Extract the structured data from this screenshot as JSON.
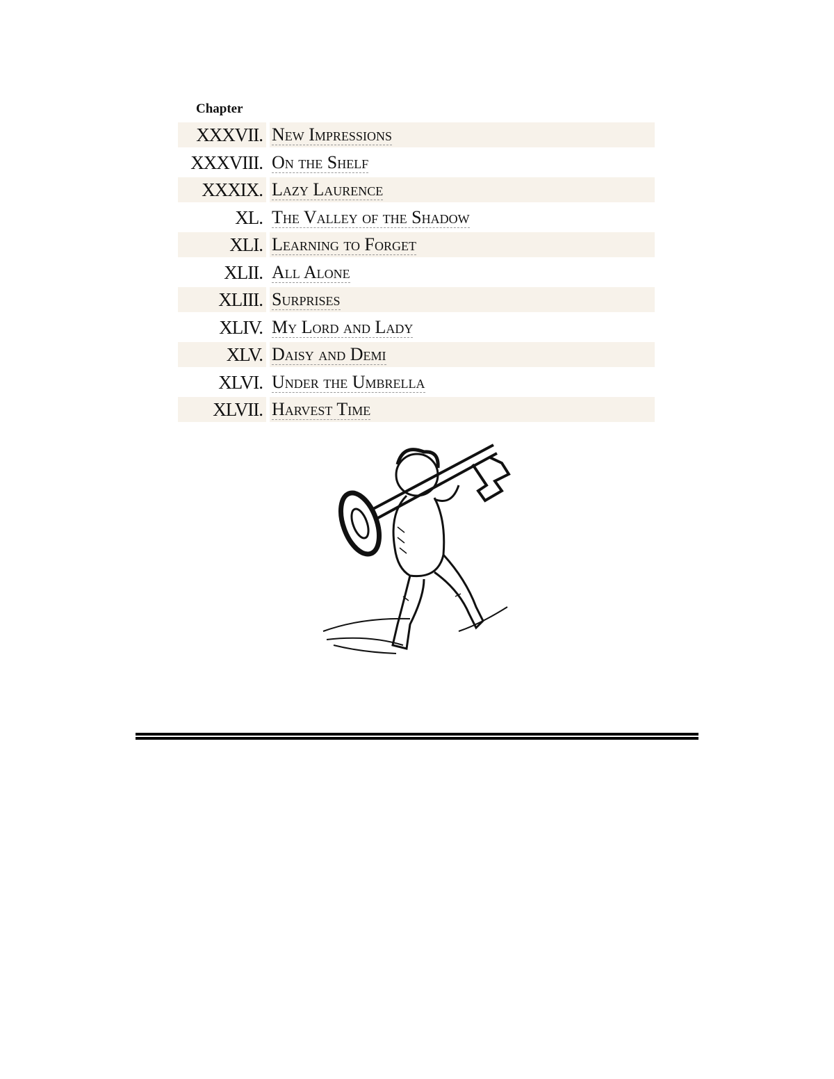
{
  "toc": {
    "header": "Chapter",
    "chapters": [
      {
        "numeral": "XXXVII.",
        "title": "New Impressions"
      },
      {
        "numeral": "XXXVIII.",
        "title": "On the Shelf"
      },
      {
        "numeral": "XXXIX.",
        "title": "Lazy Laurence"
      },
      {
        "numeral": "XL.",
        "title": "The Valley of the Shadow"
      },
      {
        "numeral": "XLI.",
        "title": "Learning to Forget"
      },
      {
        "numeral": "XLII.",
        "title": "All Alone"
      },
      {
        "numeral": "XLIII.",
        "title": "Surprises"
      },
      {
        "numeral": "XLIV.",
        "title": "My Lord and Lady"
      },
      {
        "numeral": "XLV.",
        "title": "Daisy and Demi"
      },
      {
        "numeral": "XLVI.",
        "title": "Under the Umbrella"
      },
      {
        "numeral": "XLVII.",
        "title": "Harvest Time"
      }
    ]
  },
  "illustration": {
    "subject": "cherub-carrying-key"
  },
  "colors": {
    "row_shade": "#f7f2ea",
    "link_underline": "#999999"
  }
}
